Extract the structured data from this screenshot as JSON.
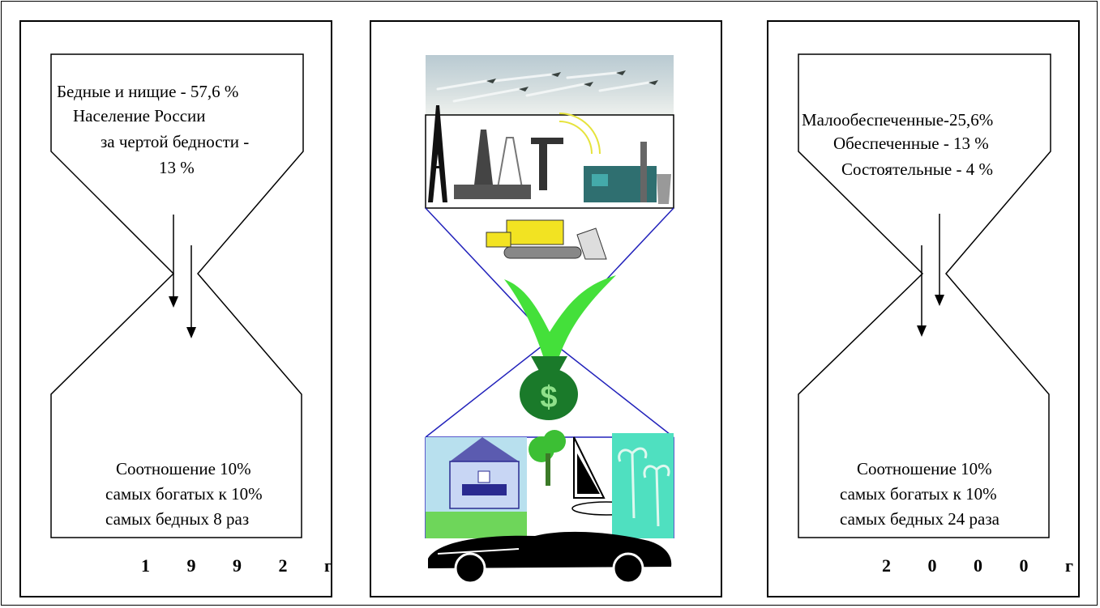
{
  "left_panel": {
    "top_text": [
      "Бедные и нищие - 57,6 %",
      "Население России",
      "за чертой бедности -",
      "13 %"
    ],
    "bottom_text": [
      "Соотношение 10%",
      "самых богатых  к 10%",
      "самых бедных  8  раз"
    ],
    "year": "1 9 9 2 г"
  },
  "center_panel": {
    "icons": [
      "jets-icon",
      "eiffel-tower-icon",
      "oil-rig-icon",
      "factory-icon",
      "bulldozer-icon",
      "green-arrow-icon",
      "money-bag-icon",
      "house-icon",
      "tree-icon",
      "sailboat-icon",
      "palm-trees-icon",
      "convertible-car-icon"
    ],
    "money_symbol": "$"
  },
  "right_panel": {
    "top_text": [
      "Малообеспеченные-25,6%",
      "Обеспеченные - 13 %",
      "Состоятельные - 4 %"
    ],
    "bottom_text": [
      "Соотношение 10%",
      "самых богатых  к 10%",
      "самых бедных  24 раза"
    ],
    "year": "2 0 0 0 г"
  }
}
